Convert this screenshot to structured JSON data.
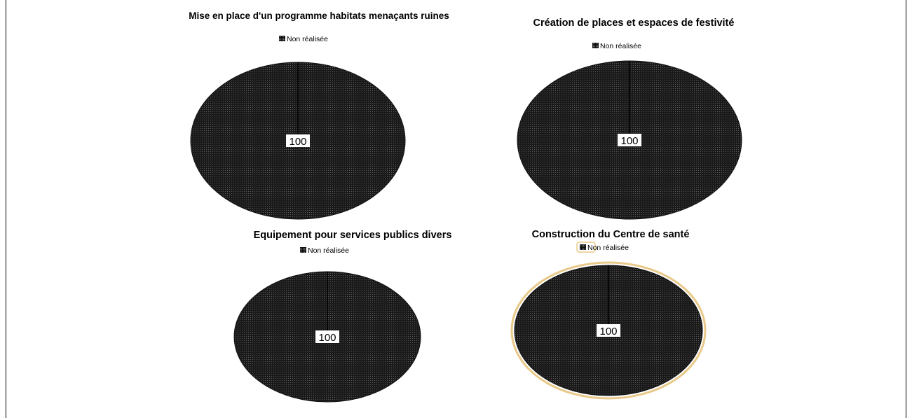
{
  "chart_data": [
    {
      "type": "pie",
      "title": "Mise en place d'un programme habitats menaçants ruines",
      "categories": [
        "Non réalisée"
      ],
      "values": [
        100
      ],
      "data_labels": [
        "100"
      ],
      "legend": "top",
      "highlighted": false
    },
    {
      "type": "pie",
      "title": "Création de places et espaces de festivité",
      "categories": [
        "Non réalisée"
      ],
      "values": [
        100
      ],
      "data_labels": [
        "100"
      ],
      "legend": "top",
      "highlighted": false
    },
    {
      "type": "pie",
      "title": "Equipement pour services publics divers",
      "categories": [
        "Non réalisée"
      ],
      "values": [
        100
      ],
      "data_labels": [
        "100"
      ],
      "legend": "top",
      "highlighted": false
    },
    {
      "type": "pie",
      "title": "Construction du Centre de santé",
      "categories": [
        "Non réalisée"
      ],
      "values": [
        100
      ],
      "data_labels": [
        "100"
      ],
      "legend": "top",
      "highlighted": true
    }
  ],
  "colors": {
    "slice_fill": "#1a1a1a",
    "slice_dot": "#5a5a5a",
    "highlight_outline": "#e8c98a",
    "text": "#000000"
  }
}
